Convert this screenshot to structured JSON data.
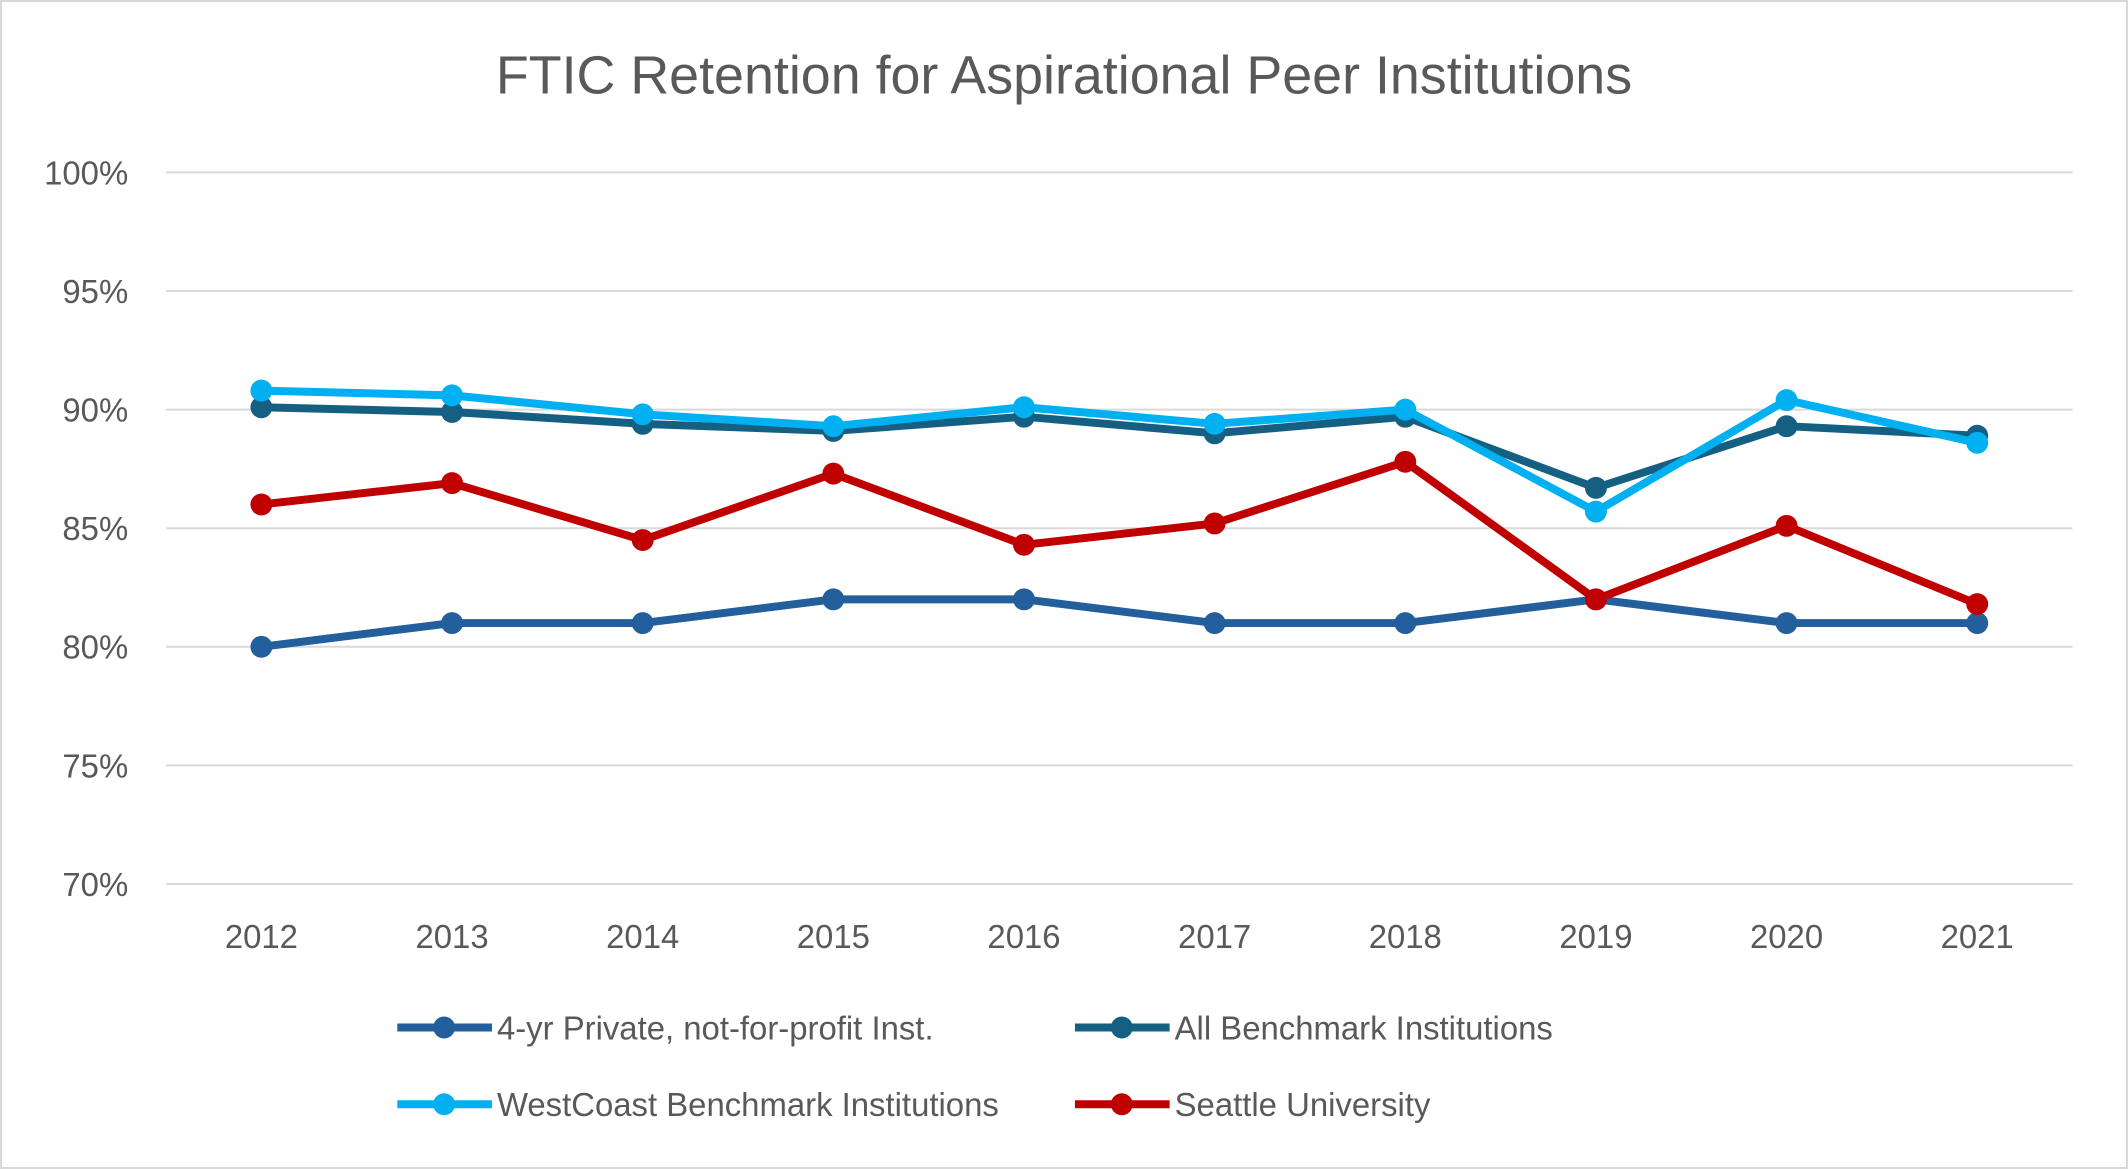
{
  "chart_data": {
    "type": "line",
    "title": "FTIC Retention for Aspirational Peer Institutions",
    "xlabel": "",
    "ylabel": "",
    "categories": [
      "2012",
      "2013",
      "2014",
      "2015",
      "2016",
      "2017",
      "2018",
      "2019",
      "2020",
      "2021"
    ],
    "ylim": [
      70,
      100
    ],
    "yticks": [
      100,
      95,
      90,
      85,
      80,
      75,
      70
    ],
    "ytick_labels": [
      "100%",
      "95%",
      "90%",
      "85%",
      "80%",
      "75%",
      "70%"
    ],
    "grid": true,
    "legend_position": "bottom",
    "series": [
      {
        "name": "4-yr Private, not-for-profit Inst.",
        "color": "#235f9c",
        "values": [
          80,
          81,
          81,
          82,
          82,
          81,
          81,
          82,
          81,
          81
        ]
      },
      {
        "name": "All Benchmark Institutions",
        "color": "#156082",
        "values": [
          90.1,
          89.9,
          89.4,
          89.1,
          89.7,
          89.0,
          89.7,
          86.7,
          89.3,
          88.9
        ]
      },
      {
        "name": "WestCoast Benchmark Institutions",
        "color": "#00b0f0",
        "values": [
          90.8,
          90.6,
          89.8,
          89.3,
          90.1,
          89.4,
          90.0,
          85.7,
          90.4,
          88.6
        ]
      },
      {
        "name": "Seattle University",
        "color": "#c00000",
        "values": [
          86.0,
          86.9,
          84.5,
          87.3,
          84.3,
          85.2,
          87.8,
          82.0,
          85.1,
          81.8
        ]
      }
    ]
  }
}
